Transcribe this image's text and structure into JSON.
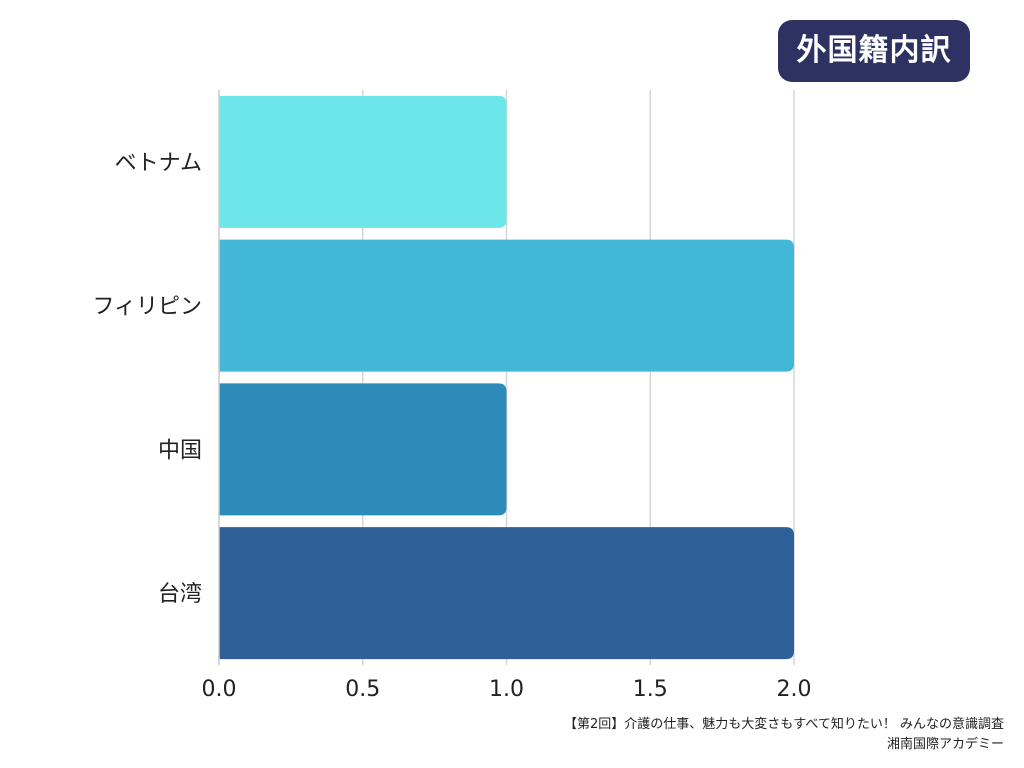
{
  "chart_data": {
    "type": "bar",
    "orientation": "horizontal",
    "title": "外国籍内訳",
    "categories": [
      "ベトナム",
      "フィリピン",
      "中国",
      "台湾"
    ],
    "values": [
      1,
      2,
      1,
      2
    ],
    "colors": [
      "#6ce6e8",
      "#43b8d6",
      "#2d8bba",
      "#2e5f97"
    ],
    "xlim": [
      0,
      2
    ],
    "xticks": [
      "0.0",
      "0.5",
      "1.0",
      "1.5",
      "2.0"
    ],
    "xtick_values": [
      0,
      0.5,
      1.0,
      1.5,
      2.0
    ],
    "xlabel": "",
    "ylabel": "",
    "grid": "vertical",
    "legend": "none"
  },
  "footer": {
    "source": "【第2回】介護の仕事、魅力も大変さもすべて知りたい！ みんなの意識調査",
    "org": "湘南国際アカデミー"
  },
  "colors": {
    "title_bg": "#2d3263",
    "grid": "#d6d6d6",
    "text": "#222222"
  }
}
